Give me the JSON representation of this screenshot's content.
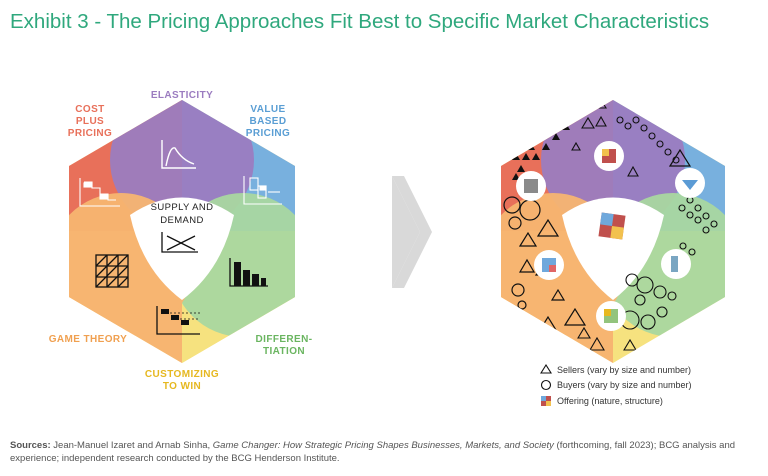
{
  "title": "Exhibit 3 - The Pricing Approaches Fit Best to Specific Market Characteristics",
  "left_diagram": {
    "center": {
      "line1": "SUPPLY AND",
      "line2": "DEMAND"
    },
    "labels": {
      "elasticity": "ELASTICITY",
      "value_based": [
        "VALUE",
        "BASED",
        "PRICING"
      ],
      "cost_plus": [
        "COST",
        "PLUS",
        "PRICING"
      ],
      "game_theory": "GAME THEORY",
      "differentiation": [
        "DIFFEREN-",
        "TIATION"
      ],
      "customizing": [
        "CUSTOMIZING",
        "TO WIN"
      ]
    },
    "colors": {
      "cost_plus": "#e8705a",
      "elasticity": "#9b7cc0",
      "value_based": "#78b0de",
      "differentiation": "#a9d7a0",
      "customizing": "#f6e27f",
      "game_theory": "#f7b571"
    }
  },
  "legend": {
    "sellers": "Sellers (vary by size and number)",
    "buyers": "Buyers (vary by size and number)",
    "offering": "Offering (nature, structure)"
  },
  "sources": {
    "label": "Sources:",
    "text_before": " Jean-Manuel Izaret and Arnab Sinha, ",
    "book": "Game Changer: How Strategic Pricing Shapes Businesses, Markets, and Society",
    "text_after": " (forthcoming, fall 2023); BCG analysis and experience; independent research conducted by the BCG Henderson Institute."
  }
}
